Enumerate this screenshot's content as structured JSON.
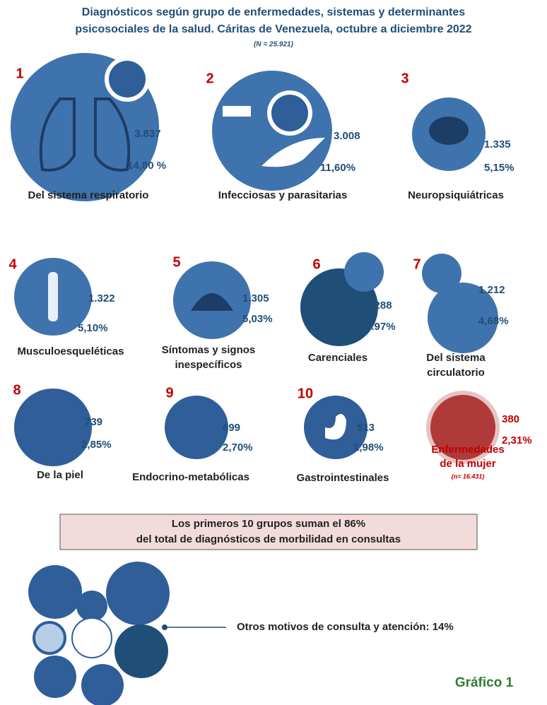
{
  "header": {
    "title": [
      "Diagnósticos según grupo de enfermedades, sistemas y determinantes",
      "psicosociales de la salud. Cáritas de Venezuela, octubre a diciembre 2022"
    ],
    "n": "(N = 25.921)"
  },
  "groups": [
    {
      "number": "1",
      "count": "3.837",
      "percent": "14,80 %",
      "name": [
        "Del sistema respiratorio"
      ]
    },
    {
      "number": "2",
      "count": "3.008",
      "percent": "11,60%",
      "name": [
        "Infecciosas y parasitarias"
      ]
    },
    {
      "number": "3",
      "count": "1.335",
      "percent": "5,15%",
      "name": [
        "Neuropsiquiátricas"
      ]
    },
    {
      "number": "4",
      "count": "1.322",
      "percent": "5,10%",
      "name": [
        "Musculoesqueléticas"
      ]
    },
    {
      "number": "5",
      "count": "1.305",
      "percent": "5,03%",
      "name": [
        "Síntomas y signos",
        "inespecíficos"
      ]
    },
    {
      "number": "6",
      "count": "1.288",
      "percent": "4.97%",
      "name": [
        "Carenciales"
      ]
    },
    {
      "number": "7",
      "count": "1.212",
      "percent": "4,68%",
      "name": [
        "Del sistema",
        "circulatorio"
      ]
    },
    {
      "number": "8",
      "count": "739",
      "percent": "2,85%",
      "name": [
        "De la piel"
      ]
    },
    {
      "number": "9",
      "count": "699",
      "percent": "2,70%",
      "name": [
        "Endocrino-metabólicas"
      ]
    },
    {
      "number": "10",
      "count": "513",
      "percent": "1,98%",
      "name": [
        "Gastrointestinales"
      ]
    }
  ],
  "women": {
    "count": "380",
    "percent": "2,31%",
    "name": [
      "Enfermedades",
      "de la mujer"
    ],
    "note": "(n= 16.431)"
  },
  "summary": [
    "Los primeros 10 grupos suman el 86%",
    "del total de diagnósticos de morbilidad en consultas"
  ],
  "others": "Otros motivos de consulta y atención: 14%",
  "figure": "Gráfico 1"
}
